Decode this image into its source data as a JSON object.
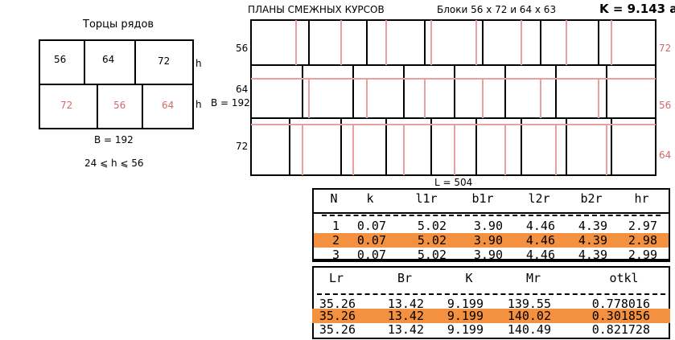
{
  "left_panel": {
    "title": "Торцы рядов",
    "top_row": [
      "56",
      "64",
      "72"
    ],
    "bottom_row": [
      "72",
      "56",
      "64"
    ],
    "h_label": "h",
    "width_label": "B = 192",
    "constraint": "24  ⩽  h  ⩽  56"
  },
  "header": {
    "plans_title": "ПЛАНЫ  СМЕЖНЫХ  КУРСОВ",
    "blocks_text": "Блоки  56 x 72   и   64 x 63",
    "k_value": "K = 9.143 a"
  },
  "plan": {
    "left_labels": [
      "56",
      "64",
      "72"
    ],
    "right_labels": [
      "72",
      "56",
      "64"
    ],
    "b_label": "B = 192",
    "length_label": "L = 504"
  },
  "table1": {
    "headers": [
      "N",
      "k",
      "l1r",
      "b1r",
      "l2r",
      "b2r",
      "hr"
    ],
    "rows": [
      [
        "1",
        "0.07",
        "5.02",
        "3.90",
        "4.46",
        "4.39",
        "2.97"
      ],
      [
        "2",
        "0.07",
        "5.02",
        "3.90",
        "4.46",
        "4.39",
        "2.98"
      ],
      [
        "3",
        "0.07",
        "5.02",
        "3.90",
        "4.46",
        "4.39",
        "2.99"
      ]
    ],
    "highlight_row": 1
  },
  "table2": {
    "headers": [
      "Lr",
      "Br",
      "K",
      "Mr",
      "otkl"
    ],
    "rows": [
      [
        "35.26",
        "13.42",
        "9.199",
        "139.55",
        "0.778016"
      ],
      [
        "35.26",
        "13.42",
        "9.199",
        "140.02",
        "0.301856"
      ],
      [
        "35.26",
        "13.42",
        "9.199",
        "140.49",
        "0.821728"
      ]
    ],
    "highlight_row": 1
  },
  "colors": {
    "accent": "#f39140",
    "pink": "#d46a6a",
    "line": "#000000"
  }
}
